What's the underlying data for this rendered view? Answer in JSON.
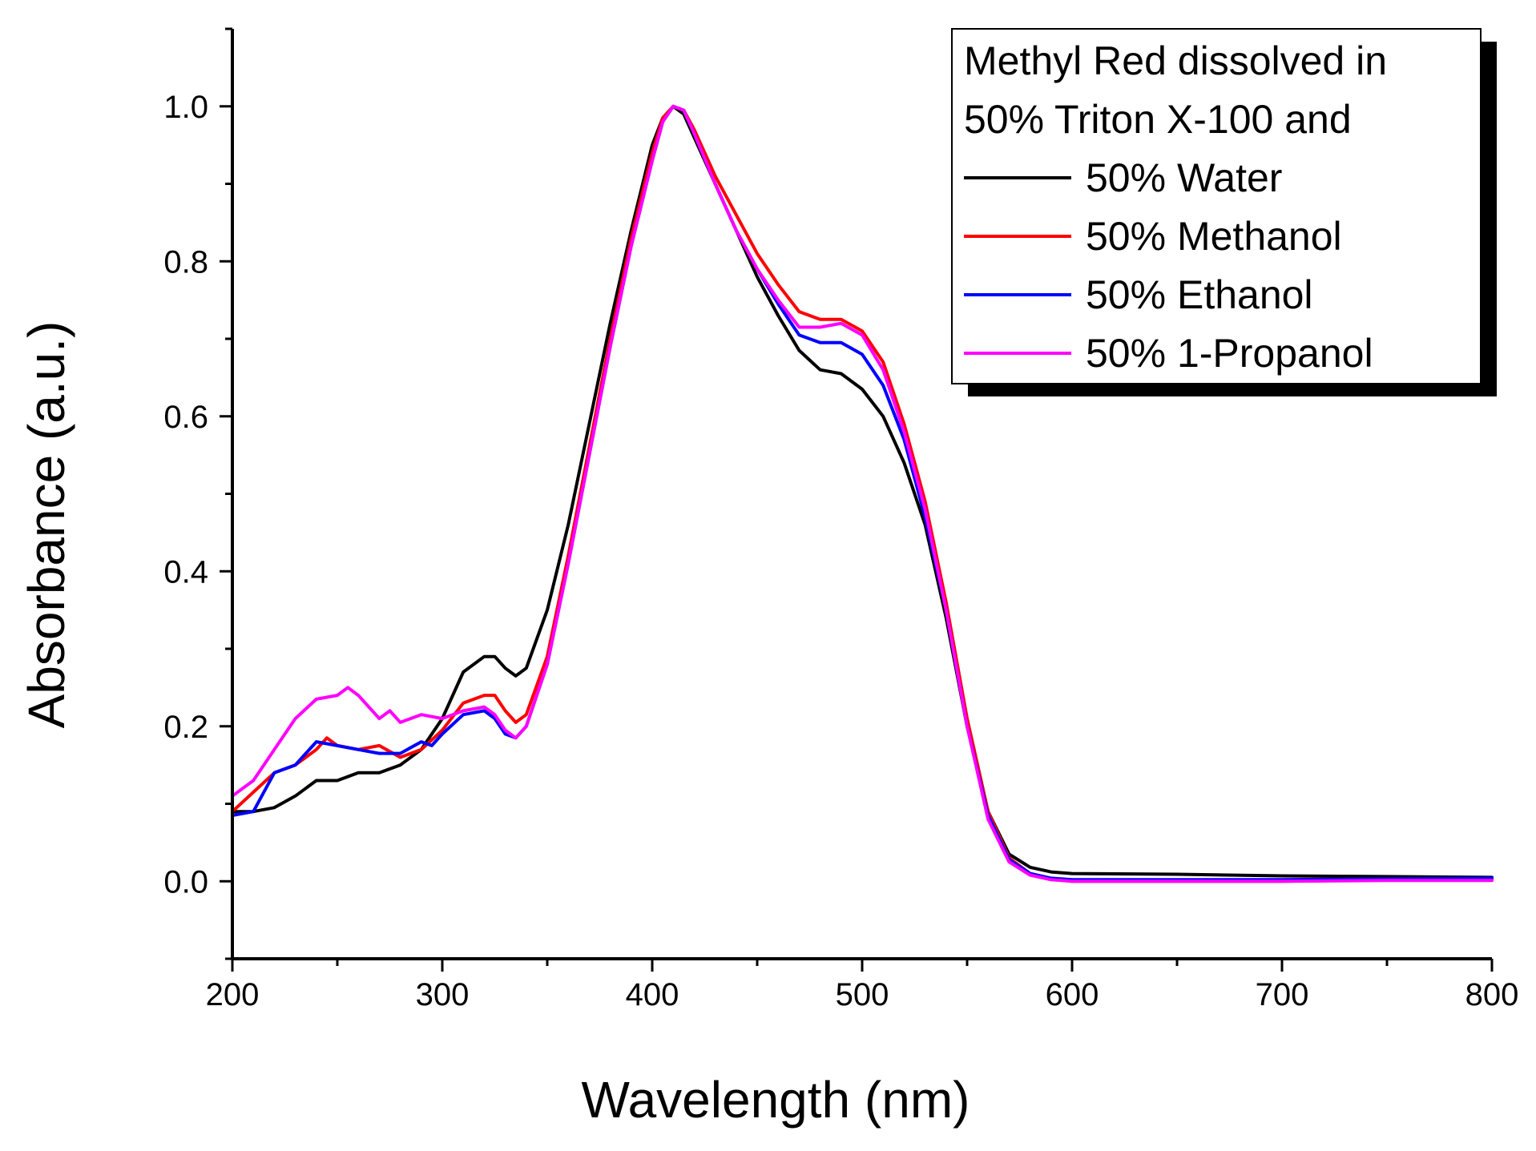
{
  "chart_data": {
    "type": "line",
    "title": "",
    "xlabel": "Wavelength (nm)",
    "ylabel": "Absorbance (a.u.)",
    "xlim": [
      200,
      800
    ],
    "ylim": [
      -0.1,
      1.1
    ],
    "x_ticks": [
      200,
      300,
      400,
      500,
      600,
      700,
      800
    ],
    "x_tick_labels": [
      "200",
      "300",
      "400",
      "500",
      "600",
      "700",
      "800"
    ],
    "y_ticks": [
      0.0,
      0.2,
      0.4,
      0.6,
      0.8,
      1.0
    ],
    "y_tick_labels": [
      "0.0",
      "0.2",
      "0.4",
      "0.6",
      "0.8",
      "1.0"
    ],
    "grid": false,
    "legend": {
      "placement": "top-right",
      "title_lines": [
        "Methyl Red dissolved in",
        "50% Triton X-100 and"
      ]
    },
    "series": [
      {
        "name": "50% Water",
        "color": "#000000",
        "points": [
          [
            200,
            0.09
          ],
          [
            210,
            0.09
          ],
          [
            220,
            0.095
          ],
          [
            230,
            0.11
          ],
          [
            240,
            0.13
          ],
          [
            250,
            0.13
          ],
          [
            260,
            0.14
          ],
          [
            270,
            0.14
          ],
          [
            280,
            0.15
          ],
          [
            290,
            0.17
          ],
          [
            300,
            0.21
          ],
          [
            310,
            0.27
          ],
          [
            320,
            0.29
          ],
          [
            325,
            0.29
          ],
          [
            330,
            0.275
          ],
          [
            335,
            0.265
          ],
          [
            340,
            0.275
          ],
          [
            350,
            0.35
          ],
          [
            360,
            0.46
          ],
          [
            370,
            0.59
          ],
          [
            380,
            0.72
          ],
          [
            390,
            0.84
          ],
          [
            400,
            0.95
          ],
          [
            405,
            0.985
          ],
          [
            410,
            1.0
          ],
          [
            415,
            0.99
          ],
          [
            420,
            0.96
          ],
          [
            430,
            0.9
          ],
          [
            440,
            0.84
          ],
          [
            450,
            0.78
          ],
          [
            460,
            0.73
          ],
          [
            470,
            0.685
          ],
          [
            480,
            0.66
          ],
          [
            490,
            0.655
          ],
          [
            500,
            0.635
          ],
          [
            510,
            0.6
          ],
          [
            520,
            0.54
          ],
          [
            530,
            0.46
          ],
          [
            540,
            0.34
          ],
          [
            550,
            0.2
          ],
          [
            560,
            0.09
          ],
          [
            570,
            0.035
          ],
          [
            580,
            0.018
          ],
          [
            590,
            0.012
          ],
          [
            600,
            0.01
          ],
          [
            650,
            0.009
          ],
          [
            700,
            0.007
          ],
          [
            750,
            0.006
          ],
          [
            800,
            0.005
          ]
        ]
      },
      {
        "name": "50% Methanol",
        "color": "#ff0000",
        "points": [
          [
            200,
            0.09
          ],
          [
            210,
            0.115
          ],
          [
            220,
            0.14
          ],
          [
            230,
            0.15
          ],
          [
            240,
            0.17
          ],
          [
            245,
            0.185
          ],
          [
            250,
            0.175
          ],
          [
            260,
            0.17
          ],
          [
            270,
            0.175
          ],
          [
            280,
            0.16
          ],
          [
            290,
            0.17
          ],
          [
            300,
            0.195
          ],
          [
            310,
            0.23
          ],
          [
            320,
            0.24
          ],
          [
            325,
            0.24
          ],
          [
            330,
            0.22
          ],
          [
            335,
            0.205
          ],
          [
            340,
            0.215
          ],
          [
            350,
            0.29
          ],
          [
            360,
            0.42
          ],
          [
            370,
            0.56
          ],
          [
            380,
            0.7
          ],
          [
            390,
            0.83
          ],
          [
            400,
            0.94
          ],
          [
            405,
            0.985
          ],
          [
            410,
            1.0
          ],
          [
            415,
            0.995
          ],
          [
            420,
            0.97
          ],
          [
            430,
            0.91
          ],
          [
            440,
            0.86
          ],
          [
            450,
            0.81
          ],
          [
            460,
            0.77
          ],
          [
            470,
            0.735
          ],
          [
            480,
            0.725
          ],
          [
            490,
            0.725
          ],
          [
            500,
            0.71
          ],
          [
            510,
            0.67
          ],
          [
            520,
            0.59
          ],
          [
            530,
            0.49
          ],
          [
            540,
            0.36
          ],
          [
            550,
            0.21
          ],
          [
            560,
            0.09
          ],
          [
            570,
            0.03
          ],
          [
            580,
            0.01
          ],
          [
            590,
            0.003
          ],
          [
            600,
            0.0
          ],
          [
            650,
            0.0
          ],
          [
            700,
            0.0
          ],
          [
            750,
            0.002
          ],
          [
            800,
            0.002
          ]
        ]
      },
      {
        "name": "50% Ethanol",
        "color": "#0000ff",
        "points": [
          [
            200,
            0.085
          ],
          [
            210,
            0.09
          ],
          [
            220,
            0.14
          ],
          [
            230,
            0.15
          ],
          [
            240,
            0.18
          ],
          [
            250,
            0.175
          ],
          [
            260,
            0.17
          ],
          [
            270,
            0.165
          ],
          [
            280,
            0.165
          ],
          [
            290,
            0.18
          ],
          [
            295,
            0.175
          ],
          [
            300,
            0.19
          ],
          [
            310,
            0.215
          ],
          [
            320,
            0.22
          ],
          [
            325,
            0.21
          ],
          [
            330,
            0.19
          ],
          [
            335,
            0.185
          ],
          [
            340,
            0.2
          ],
          [
            350,
            0.28
          ],
          [
            360,
            0.41
          ],
          [
            370,
            0.55
          ],
          [
            380,
            0.69
          ],
          [
            390,
            0.82
          ],
          [
            400,
            0.93
          ],
          [
            405,
            0.98
          ],
          [
            410,
            1.0
          ],
          [
            415,
            0.995
          ],
          [
            420,
            0.965
          ],
          [
            430,
            0.9
          ],
          [
            440,
            0.84
          ],
          [
            450,
            0.79
          ],
          [
            460,
            0.745
          ],
          [
            470,
            0.705
          ],
          [
            480,
            0.695
          ],
          [
            490,
            0.695
          ],
          [
            500,
            0.68
          ],
          [
            510,
            0.64
          ],
          [
            520,
            0.57
          ],
          [
            530,
            0.47
          ],
          [
            540,
            0.35
          ],
          [
            550,
            0.2
          ],
          [
            560,
            0.085
          ],
          [
            570,
            0.028
          ],
          [
            580,
            0.01
          ],
          [
            590,
            0.004
          ],
          [
            600,
            0.002
          ],
          [
            650,
            0.002
          ],
          [
            700,
            0.002
          ],
          [
            750,
            0.003
          ],
          [
            800,
            0.004
          ]
        ]
      },
      {
        "name": "50% 1-Propanol",
        "color": "#ff00ff",
        "points": [
          [
            200,
            0.11
          ],
          [
            210,
            0.13
          ],
          [
            220,
            0.17
          ],
          [
            230,
            0.21
          ],
          [
            240,
            0.235
          ],
          [
            250,
            0.24
          ],
          [
            255,
            0.25
          ],
          [
            260,
            0.24
          ],
          [
            270,
            0.21
          ],
          [
            275,
            0.22
          ],
          [
            280,
            0.205
          ],
          [
            290,
            0.215
          ],
          [
            300,
            0.21
          ],
          [
            310,
            0.22
          ],
          [
            320,
            0.225
          ],
          [
            325,
            0.215
          ],
          [
            330,
            0.195
          ],
          [
            335,
            0.185
          ],
          [
            340,
            0.2
          ],
          [
            350,
            0.28
          ],
          [
            360,
            0.41
          ],
          [
            370,
            0.55
          ],
          [
            380,
            0.69
          ],
          [
            390,
            0.82
          ],
          [
            400,
            0.93
          ],
          [
            405,
            0.98
          ],
          [
            410,
            1.0
          ],
          [
            415,
            0.995
          ],
          [
            420,
            0.965
          ],
          [
            430,
            0.9
          ],
          [
            440,
            0.84
          ],
          [
            450,
            0.79
          ],
          [
            460,
            0.75
          ],
          [
            470,
            0.715
          ],
          [
            480,
            0.715
          ],
          [
            490,
            0.72
          ],
          [
            500,
            0.705
          ],
          [
            510,
            0.66
          ],
          [
            520,
            0.58
          ],
          [
            530,
            0.48
          ],
          [
            540,
            0.35
          ],
          [
            550,
            0.2
          ],
          [
            560,
            0.08
          ],
          [
            570,
            0.025
          ],
          [
            580,
            0.008
          ],
          [
            590,
            0.002
          ],
          [
            600,
            0.0
          ],
          [
            650,
            0.0
          ],
          [
            700,
            0.0
          ],
          [
            750,
            0.001
          ],
          [
            800,
            0.001
          ]
        ]
      }
    ]
  }
}
